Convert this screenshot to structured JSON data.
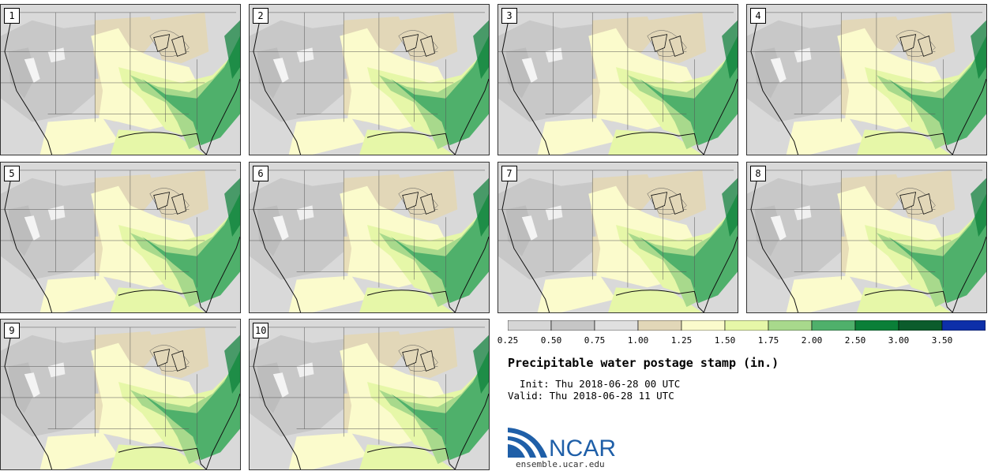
{
  "stamps": [
    {
      "label": "1"
    },
    {
      "label": "2"
    },
    {
      "label": "3"
    },
    {
      "label": "4"
    },
    {
      "label": "5"
    },
    {
      "label": "6"
    },
    {
      "label": "7"
    },
    {
      "label": "8"
    },
    {
      "label": "9"
    },
    {
      "label": "10"
    }
  ],
  "colorbar": {
    "colors": [
      "#d6d6d6",
      "#c6c6c6",
      "#e0e0e0",
      "#e2d7b8",
      "#fbfbcc",
      "#e6f7a8",
      "#a8d98c",
      "#4fb06b",
      "#0a7f38",
      "#0c5c2c",
      "#0d2fa9"
    ],
    "ticks": [
      "0.25",
      "0.50",
      "0.75",
      "1.00",
      "1.25",
      "1.50",
      "1.75",
      "2.00",
      "2.50",
      "3.00",
      "3.50"
    ]
  },
  "title": "Precipitable water postage stamp (in.)",
  "init": "  Init: Thu 2018-06-28 00 UTC",
  "valid": "Valid: Thu 2018-06-28 11 UTC",
  "logo": {
    "text": "NCAR",
    "url": "ensemble.ucar.edu",
    "brand_color": "#1f5fa8"
  }
}
